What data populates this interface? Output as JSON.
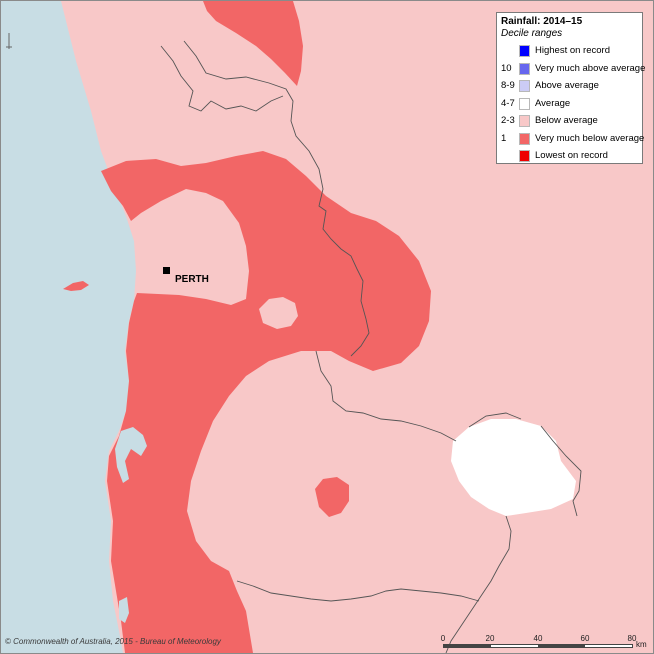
{
  "legend": {
    "title": "Rainfall: 2014–15",
    "subtitle": "Decile ranges",
    "items": [
      {
        "code": "",
        "label": "Highest on record",
        "color": "#0000ff"
      },
      {
        "code": "10",
        "label": "Very much above average",
        "color": "#6666ee"
      },
      {
        "code": "8-9",
        "label": "Above average",
        "color": "#ccccf5"
      },
      {
        "code": "4-7",
        "label": "Average",
        "color": "#ffffff"
      },
      {
        "code": "2-3",
        "label": "Below average",
        "color": "#f8c8c8"
      },
      {
        "code": "1",
        "label": "Very much below average",
        "color": "#f26666"
      },
      {
        "code": "",
        "label": "Lowest on record",
        "color": "#ee0000"
      }
    ]
  },
  "city": {
    "name": "PERTH"
  },
  "copyright": "© Commonwealth of Australia, 2015 - Bureau of Meteorology",
  "scale": {
    "ticks": [
      "0",
      "20",
      "40",
      "60",
      "80"
    ],
    "unit": "km"
  },
  "colors": {
    "ocean": "#c8dde4",
    "below_average": "#f8c8c8",
    "very_much_below_average": "#f26666",
    "average": "#ffffff",
    "boundary": "#555555"
  }
}
